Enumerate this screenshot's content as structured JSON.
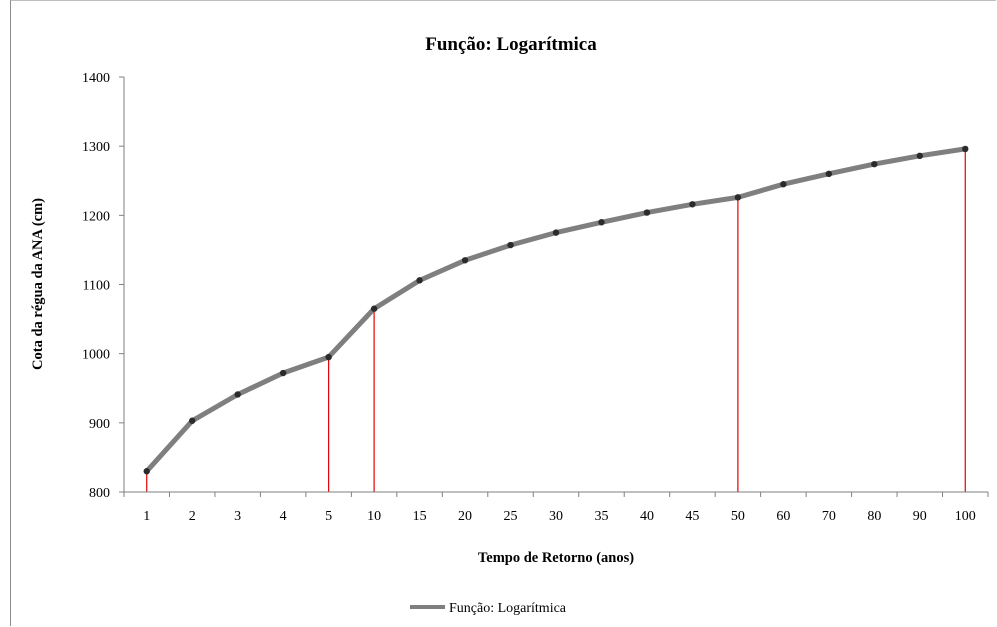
{
  "chart_data": {
    "type": "line",
    "title": "Função: Logarítmica",
    "xlabel": "Tempo de Retorno (anos)",
    "ylabel": "Cota da régua da ANA (cm)",
    "categories": [
      "1",
      "2",
      "3",
      "4",
      "5",
      "10",
      "15",
      "20",
      "25",
      "30",
      "35",
      "40",
      "45",
      "50",
      "60",
      "70",
      "80",
      "90",
      "100"
    ],
    "series": [
      {
        "name": "Função: Logarítmica",
        "values": [
          830,
          903,
          941,
          972,
          995,
          1065,
          1106,
          1135,
          1157,
          1175,
          1190,
          1204,
          1216,
          1226,
          1245,
          1260,
          1274,
          1286,
          1296
        ]
      }
    ],
    "ylim": [
      800,
      1400
    ],
    "yticks": [
      800,
      900,
      1000,
      1100,
      1200,
      1300,
      1400
    ],
    "highlight_categories": [
      "1",
      "5",
      "10",
      "50",
      "100"
    ],
    "grid": false,
    "legend": "bottom",
    "colors": {
      "series_line": "#7f7f7f",
      "markers": "#2b2b2b",
      "highlight_lines": "#e60000",
      "axis": "#7f7f7f"
    }
  }
}
